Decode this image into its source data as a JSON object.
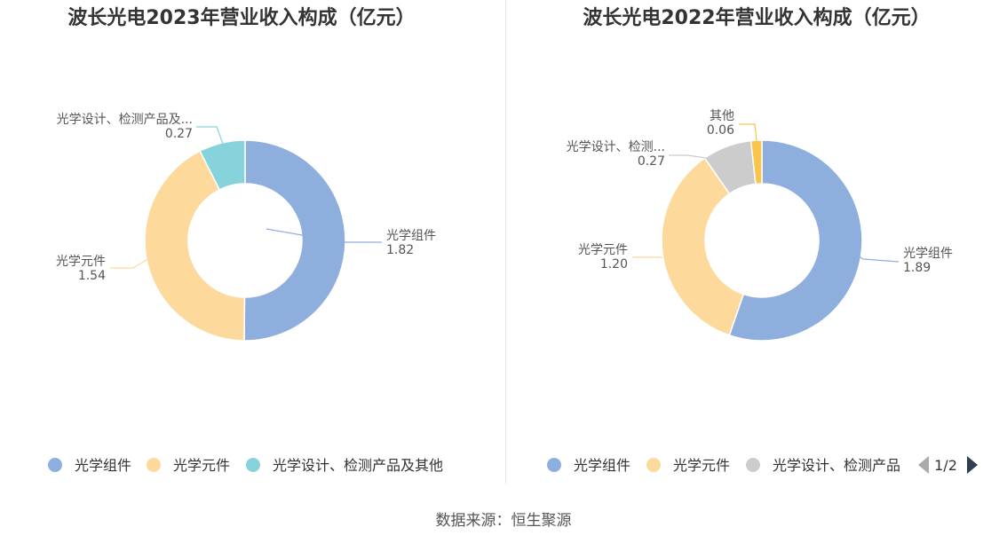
{
  "source": "数据来源：恒生聚源",
  "legend_pager": {
    "label": "1/2",
    "prev_color": "#aaaaaa",
    "next_color": "#304050"
  },
  "colors": {
    "光学组件": "#8eaedd",
    "光学元件": "#fdd99c",
    "光学设计、检测产品及其他": "#86d3db",
    "其他": "#fbc44a"
  },
  "chart_data": [
    {
      "type": "pie",
      "donut": true,
      "title": "波长光电2023年营业收入构成（亿元）",
      "unit": "亿元",
      "slices": [
        {
          "name": "光学组件",
          "value": 1.82,
          "label_name": "光学组件",
          "label_value": "1.82"
        },
        {
          "name": "光学元件",
          "value": 1.54,
          "label_name": "光学元件",
          "label_value": "1.54"
        },
        {
          "name": "光学设计、检测产品及其他",
          "value": 0.27,
          "label_name": "光学设计、检测产品及...",
          "label_value": "0.27"
        }
      ],
      "legend": [
        "光学组件",
        "光学元件",
        "光学设计、检测产品及其他"
      ],
      "legend_placement": "bottom"
    },
    {
      "type": "pie",
      "donut": true,
      "title": "波长光电2022年营业收入构成（亿元）",
      "unit": "亿元",
      "slices": [
        {
          "name": "光学组件",
          "value": 1.89,
          "label_name": "光学组件",
          "label_value": "1.89"
        },
        {
          "name": "光学元件",
          "value": 1.2,
          "label_name": "光学元件",
          "label_value": "1.20"
        },
        {
          "name": "光学设计、检测产品",
          "value": 0.27,
          "label_name": "光学设计、检测...",
          "label_value": "0.27"
        },
        {
          "name": "其他",
          "value": 0.06,
          "label_name": "其他",
          "label_value": "0.06"
        }
      ],
      "legend": [
        "光学组件",
        "光学元件",
        "光学设计、检测产品"
      ],
      "legend_placement": "bottom"
    }
  ]
}
